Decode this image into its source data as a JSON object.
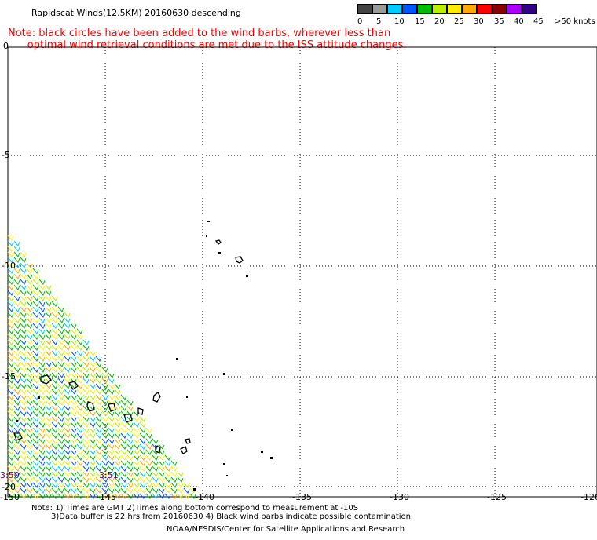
{
  "header": {
    "title": "Rapidscat Winds(12.5KM) 20160630 descending",
    "note_line1": "Note: black circles have been added to the wind barbs, wherever less than",
    "note_line2": "      optimal wind retrieval conditions are met due to the ISS attitude changes."
  },
  "legend": {
    "labels": [
      "0",
      "5",
      "10",
      "15",
      "20",
      "25",
      "30",
      "35",
      "40",
      "45",
      ">50 knots"
    ],
    "colors": [
      "#444444",
      "#9a9a9a",
      "#00ccff",
      "#0055ff",
      "#00bb00",
      "#bbee00",
      "#ffee00",
      "#ffaa00",
      "#ff0000",
      "#880000",
      "#aa00ff",
      "#330088"
    ]
  },
  "map": {
    "lat_labels": [
      "0",
      "-5",
      "-10",
      "-15",
      "-20"
    ],
    "lon_labels": [
      "-150",
      "-145",
      "-140",
      "-135",
      "-130",
      "-125",
      "-120"
    ],
    "time_labels": [
      "3:50",
      "3:51"
    ]
  },
  "footer": {
    "line1": "Note: 1) Times are GMT 2)Times along bottom correspond to measurement at -10S",
    "line2": "3)Data buffer is 22 hrs from 20160630 4) Black wind barbs indicate possible contamination",
    "line3": "NOAA/NESDIS/Center for Satellite Applications and Research"
  }
}
